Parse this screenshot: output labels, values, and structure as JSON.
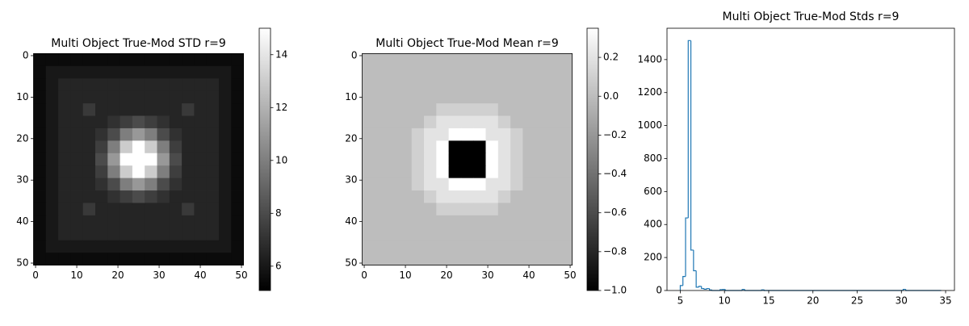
{
  "chart_data": [
    {
      "type": "heatmap",
      "title": "Multi Object True-Mod STD r=9",
      "xlim": [
        -0.5,
        50.5
      ],
      "ylim": [
        50.5,
        -0.5
      ],
      "xticks": [
        0,
        10,
        20,
        30,
        40,
        50
      ],
      "yticks": [
        0,
        10,
        20,
        30,
        40,
        50
      ],
      "colormap": "gray",
      "clim": [
        5.08,
        15.0
      ],
      "colorbar_ticks": [
        6,
        8,
        10,
        12,
        14
      ],
      "z": [
        [
          5.5,
          5.5,
          5.5,
          5.5,
          5.5,
          5.5,
          5.5,
          5.5,
          5.5,
          5.5,
          5.5,
          5.5,
          5.5,
          5.5,
          5.5,
          5.5,
          5.5
        ],
        [
          5.5,
          6,
          6,
          6,
          6,
          6,
          6,
          6,
          6,
          6,
          6,
          6,
          6,
          6,
          6,
          6,
          5.5
        ],
        [
          5.5,
          6,
          6.5,
          6.5,
          6.5,
          6.5,
          6.5,
          6.5,
          6.5,
          6.5,
          6.5,
          6.5,
          6.5,
          6.5,
          6.5,
          6,
          5.5
        ],
        [
          5.5,
          6,
          6.5,
          6.5,
          6.5,
          6.5,
          6.5,
          6.5,
          6.5,
          6.5,
          6.5,
          6.5,
          6.5,
          6.5,
          6.5,
          6,
          5.5
        ],
        [
          5.5,
          6,
          6.5,
          6.5,
          7.3,
          6.5,
          6.5,
          6.5,
          6.5,
          6.5,
          6.5,
          6.5,
          7.3,
          6.5,
          6.5,
          6,
          5.5
        ],
        [
          5.5,
          6,
          6.5,
          6.5,
          6.5,
          6.5,
          7,
          7.5,
          8,
          7.5,
          7,
          6.5,
          6.5,
          6.5,
          6.5,
          6,
          5.5
        ],
        [
          5.5,
          6,
          6.5,
          6.5,
          6.5,
          7,
          8,
          10,
          11,
          10,
          8,
          7,
          6.5,
          6.5,
          6.5,
          6,
          5.5
        ],
        [
          5.5,
          6,
          6.5,
          6.5,
          6.5,
          7.5,
          10,
          13,
          15,
          13,
          10,
          7.5,
          6.5,
          6.5,
          6.5,
          6,
          5.5
        ],
        [
          5.5,
          6,
          6.5,
          6.5,
          6.5,
          8,
          11,
          15,
          15,
          15,
          11,
          8,
          6.5,
          6.5,
          6.5,
          6,
          5.5
        ],
        [
          5.5,
          6,
          6.5,
          6.5,
          6.5,
          7.5,
          10,
          13,
          15,
          13,
          10,
          7.5,
          6.5,
          6.5,
          6.5,
          6,
          5.5
        ],
        [
          5.5,
          6,
          6.5,
          6.5,
          6.5,
          7,
          8,
          10,
          11,
          10,
          8,
          7,
          6.5,
          6.5,
          6.5,
          6,
          5.5
        ],
        [
          5.5,
          6,
          6.5,
          6.5,
          6.5,
          6.5,
          7,
          7.5,
          8,
          7.5,
          7,
          6.5,
          6.5,
          6.5,
          6.5,
          6,
          5.5
        ],
        [
          5.5,
          6,
          6.5,
          6.5,
          7.3,
          6.5,
          6.5,
          6.5,
          6.5,
          6.5,
          6.5,
          6.5,
          7.3,
          6.5,
          6.5,
          6,
          5.5
        ],
        [
          5.5,
          6,
          6.5,
          6.5,
          6.5,
          6.5,
          6.5,
          6.5,
          6.5,
          6.5,
          6.5,
          6.5,
          6.5,
          6.5,
          6.5,
          6,
          5.5
        ],
        [
          5.5,
          6,
          6.5,
          6.5,
          6.5,
          6.5,
          6.5,
          6.5,
          6.5,
          6.5,
          6.5,
          6.5,
          6.5,
          6.5,
          6.5,
          6,
          5.5
        ],
        [
          5.5,
          6,
          6,
          6,
          6,
          6,
          6,
          6,
          6,
          6,
          6,
          6,
          6,
          6,
          6,
          6,
          5.5
        ],
        [
          5.5,
          5.5,
          5.5,
          5.5,
          5.5,
          5.5,
          5.5,
          5.5,
          5.5,
          5.5,
          5.5,
          5.5,
          5.5,
          5.5,
          5.5,
          5.5,
          5.5
        ]
      ]
    },
    {
      "type": "heatmap",
      "title": "Multi Object True-Mod Mean r=9",
      "xlim": [
        -0.5,
        50.5
      ],
      "ylim": [
        50.5,
        -0.5
      ],
      "xticks": [
        0,
        10,
        20,
        30,
        40,
        50
      ],
      "yticks": [
        0,
        10,
        20,
        30,
        40,
        50
      ],
      "colormap": "gray",
      "clim": [
        -1.0,
        0.35
      ],
      "colorbar_ticks": [
        {
          "value": -1.0,
          "label": "−1.0"
        },
        {
          "value": -0.8,
          "label": "−0.8"
        },
        {
          "value": -0.6,
          "label": "−0.6"
        },
        {
          "value": -0.4,
          "label": "−0.4"
        },
        {
          "value": -0.2,
          "label": "−0.2"
        },
        {
          "value": 0.0,
          "label": "0.0"
        },
        0.2
      ],
      "z": [
        [
          0,
          0,
          0,
          0,
          0,
          0,
          0,
          0,
          0,
          0,
          0,
          0,
          0,
          0,
          0,
          0,
          0
        ],
        [
          0,
          0,
          0,
          0,
          0,
          0,
          0,
          0,
          0,
          0,
          0,
          0,
          0,
          0,
          0,
          0,
          0
        ],
        [
          0,
          0,
          0,
          0,
          0,
          0,
          0,
          0,
          0,
          0,
          0,
          0,
          0,
          0,
          0,
          0,
          0
        ],
        [
          0,
          0,
          0,
          0,
          0,
          0,
          0,
          0,
          0,
          0,
          0,
          0,
          0,
          0,
          0,
          0,
          0
        ],
        [
          0,
          0,
          0,
          0,
          0,
          0,
          0.1,
          0.1,
          0.1,
          0.1,
          0.1,
          0,
          0,
          0,
          0,
          0,
          0
        ],
        [
          0,
          0,
          0,
          0,
          0,
          0.1,
          0.2,
          0.2,
          0.2,
          0.2,
          0.2,
          0.1,
          0,
          0,
          0,
          0,
          0
        ],
        [
          0,
          0,
          0,
          0,
          0.1,
          0.2,
          0.2,
          0.35,
          0.35,
          0.35,
          0.2,
          0.2,
          0.1,
          0,
          0,
          0,
          0
        ],
        [
          0,
          0,
          0,
          0,
          0.1,
          0.2,
          0.35,
          -1,
          -1,
          -1,
          0.35,
          0.2,
          0.1,
          0,
          0,
          0,
          0
        ],
        [
          0,
          0,
          0,
          0,
          0.1,
          0.2,
          0.35,
          -1,
          -1,
          -1,
          0.35,
          0.2,
          0.1,
          0,
          0,
          0,
          0
        ],
        [
          0,
          0,
          0,
          0,
          0.1,
          0.2,
          0.35,
          -1,
          -1,
          -1,
          0.35,
          0.2,
          0.1,
          0,
          0,
          0,
          0
        ],
        [
          0,
          0,
          0,
          0,
          0.1,
          0.2,
          0.2,
          0.35,
          0.35,
          0.35,
          0.2,
          0.2,
          0.1,
          0,
          0,
          0,
          0
        ],
        [
          0,
          0,
          0,
          0,
          0,
          0.1,
          0.2,
          0.2,
          0.2,
          0.2,
          0.2,
          0.1,
          0,
          0,
          0,
          0,
          0
        ],
        [
          0,
          0,
          0,
          0,
          0,
          0,
          0.1,
          0.1,
          0.1,
          0.1,
          0.1,
          0,
          0,
          0,
          0,
          0,
          0
        ],
        [
          0,
          0,
          0,
          0,
          0,
          0,
          0,
          0,
          0,
          0,
          0,
          0,
          0,
          0,
          0,
          0,
          0
        ],
        [
          0,
          0,
          0,
          0,
          0,
          0,
          0,
          0,
          0,
          0,
          0,
          0,
          0,
          0,
          0,
          0,
          0
        ],
        [
          0,
          0,
          0,
          0,
          0,
          0,
          0,
          0,
          0,
          0,
          0,
          0,
          0,
          0,
          0,
          0,
          0
        ],
        [
          0,
          0,
          0,
          0,
          0,
          0,
          0,
          0,
          0,
          0,
          0,
          0,
          0,
          0,
          0,
          0,
          0
        ]
      ]
    },
    {
      "type": "histogram",
      "title": "Multi Object True-Mod Stds r=9",
      "histtype": "step",
      "color": "#1f77b4",
      "bins": [
        5.0,
        5.3,
        5.6,
        5.9,
        6.2,
        6.5,
        6.8,
        7.1,
        7.4,
        7.7,
        8.0,
        8.3,
        8.6,
        9.5,
        9.8,
        10.1,
        12.0,
        12.3,
        14.2,
        14.5,
        30.2,
        30.5,
        34.5
      ],
      "counts": [
        30,
        85,
        440,
        1515,
        245,
        120,
        20,
        25,
        12,
        8,
        12,
        3,
        0,
        5,
        6,
        0,
        6,
        0,
        4,
        0,
        7,
        0
      ],
      "xlim": [
        3.5,
        36.0
      ],
      "ylim": [
        0,
        1590
      ],
      "xticks": [
        5,
        10,
        15,
        20,
        25,
        30,
        35
      ],
      "yticks": [
        0,
        200,
        400,
        600,
        800,
        1000,
        1200,
        1400
      ]
    }
  ]
}
